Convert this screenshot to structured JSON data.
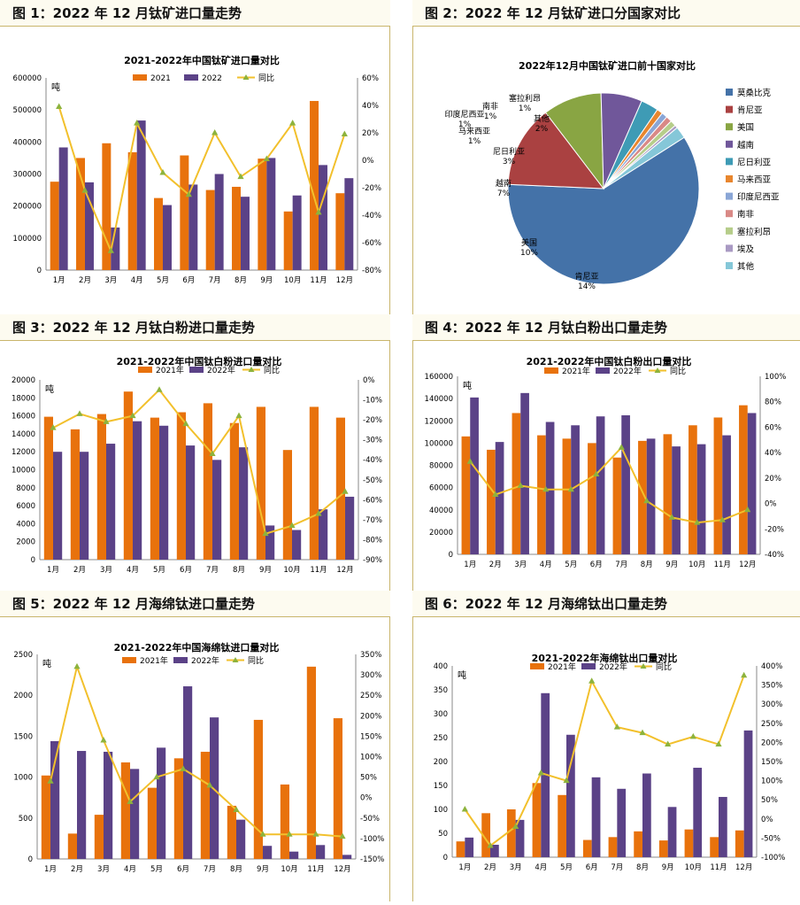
{
  "months": [
    "1月",
    "2月",
    "3月",
    "4月",
    "5月",
    "6月",
    "7月",
    "8月",
    "9月",
    "10月",
    "11月",
    "12月"
  ],
  "colors": {
    "orange": "#e8720c",
    "purple": "#5b4287",
    "line": "#f2c02c",
    "marker": "#8db33d"
  },
  "panels": [
    {
      "header": "图 1：2022 年 12 月钛矿进口量走势",
      "chart_data": {
        "type": "bar",
        "title": "2021-2022年中国钛矿进口量对比",
        "unit": "吨",
        "legend": [
          "2021",
          "2022",
          "同比"
        ],
        "series": [
          {
            "name": "2021",
            "values": [
              276000,
              350000,
              396000,
              368000,
              225000,
              358000,
              250000,
              260000,
              348000,
              183000,
              528000,
              240000
            ]
          },
          {
            "name": "2022",
            "values": [
              383000,
              274000,
              133000,
              467000,
              203000,
              267000,
              300000,
              229000,
              350000,
              233000,
              328000,
              287000
            ]
          },
          {
            "name": "同比",
            "values": [
              39,
              -22,
              -66,
              27,
              -9,
              -25,
              20,
              -12,
              1,
              27,
              -38,
              19
            ]
          }
        ],
        "ylim": [
          0,
          600000
        ],
        "yticks": [
          0,
          100000,
          200000,
          300000,
          400000,
          500000,
          600000
        ],
        "y2lim": [
          -80,
          60
        ],
        "y2ticks": [
          -80,
          -60,
          -40,
          -20,
          0,
          20,
          40,
          60
        ]
      }
    },
    {
      "header": "图 2：2022 年 12 月钛矿进口分国家对比",
      "chart_data": {
        "type": "pie",
        "title": "2022年12月中国钛矿进口前十国家对比",
        "slices": [
          {
            "name": "莫桑比克",
            "value": 60,
            "label": "莫桑比克\n60%",
            "color": "#4472a8"
          },
          {
            "name": "肯尼亚",
            "value": 14,
            "label": "肯尼亚\n14%",
            "color": "#aa4141"
          },
          {
            "name": "美国",
            "value": 10,
            "label": "美国\n10%",
            "color": "#89a543"
          },
          {
            "name": "越南",
            "value": 7,
            "label": "越南\n7%",
            "color": "#70579a"
          },
          {
            "name": "尼日利亚",
            "value": 3,
            "label": "尼日利亚\n3%",
            "color": "#3e9bb5"
          },
          {
            "name": "马来西亚",
            "value": 1,
            "label": "马来西亚\n1%",
            "color": "#e8862e"
          },
          {
            "name": "印度尼西亚",
            "value": 1,
            "label": "印度尼西亚\n1%",
            "color": "#8aa6d6"
          },
          {
            "name": "南非",
            "value": 1,
            "label": "南非\n1%",
            "color": "#d98986"
          },
          {
            "name": "塞拉利昂",
            "value": 1,
            "label": "塞拉利昂\n1%",
            "color": "#b6cd8a"
          },
          {
            "name": "埃及",
            "value": 0.5,
            "label": "",
            "color": "#a99ac3"
          },
          {
            "name": "其他",
            "value": 2,
            "label": "其他\n2%",
            "color": "#85c7d8"
          }
        ],
        "legend_placement": "right"
      }
    },
    {
      "header": "图 3：2022 年 12 月钛白粉进口量走势",
      "chart_data": {
        "type": "bar",
        "title": "2021-2022年中国钛白粉进口量对比",
        "unit": "吨",
        "legend": [
          "2021年",
          "2022年",
          "同比"
        ],
        "series": [
          {
            "name": "2021年",
            "values": [
              15900,
              14500,
              16200,
              18700,
              15800,
              16400,
              17400,
              15200,
              17000,
              12200,
              17000,
              15800
            ]
          },
          {
            "name": "2022年",
            "values": [
              12000,
              12000,
              12900,
              15400,
              14900,
              12700,
              11100,
              12500,
              3800,
              3300,
              5600,
              7000
            ]
          },
          {
            "name": "同比",
            "values": [
              -24,
              -17,
              -21,
              -18,
              -5,
              -22,
              -37,
              -18,
              -77,
              -73,
              -67,
              -56
            ]
          }
        ],
        "ylim": [
          0,
          20000
        ],
        "yticks": [
          0,
          2000,
          4000,
          6000,
          8000,
          10000,
          12000,
          14000,
          16000,
          18000,
          20000
        ],
        "y2lim": [
          -90,
          0
        ],
        "y2ticks": [
          -90,
          -80,
          -70,
          -60,
          -50,
          -40,
          -30,
          -20,
          -10,
          0
        ]
      }
    },
    {
      "header": "图 4：2022 年 12 月钛白粉出口量走势",
      "chart_data": {
        "type": "bar",
        "title": "2021-2022年中国钛白粉出口量对比",
        "unit": "吨",
        "legend": [
          "2021年",
          "2022年",
          "同比"
        ],
        "series": [
          {
            "name": "2021年",
            "values": [
              106000,
              94000,
              127000,
              107000,
              104000,
              100000,
              87000,
              102000,
              108000,
              116000,
              123000,
              134000
            ]
          },
          {
            "name": "2022年",
            "values": [
              141000,
              101000,
              145000,
              119000,
              116000,
              124000,
              125000,
              104000,
              97000,
              99000,
              107000,
              127000
            ]
          },
          {
            "name": "同比",
            "values": [
              33,
              7,
              14,
              11,
              11,
              23,
              44,
              2,
              -11,
              -15,
              -13,
              -5
            ]
          }
        ],
        "ylim": [
          0,
          160000
        ],
        "yticks": [
          0,
          20000,
          40000,
          60000,
          80000,
          100000,
          120000,
          140000,
          160000
        ],
        "y2lim": [
          -40,
          100
        ],
        "y2ticks": [
          -40,
          -20,
          0,
          20,
          40,
          60,
          80,
          100
        ]
      }
    },
    {
      "header": "图 5：2022 年 12 月海绵钛进口量走势",
      "chart_data": {
        "type": "bar",
        "title": "2021-2022年中国海绵钛进口量对比",
        "unit": "吨",
        "legend": [
          "2021年",
          "2022年",
          "同比"
        ],
        "series": [
          {
            "name": "2021年",
            "values": [
              1020,
              310,
              540,
              1180,
              870,
              1230,
              1310,
              650,
              1700,
              910,
              2350,
              1720
            ]
          },
          {
            "name": "2022年",
            "values": [
              1440,
              1320,
              1310,
              1100,
              1360,
              2110,
              1730,
              480,
              160,
              90,
              170,
              50
            ]
          },
          {
            "name": "同比",
            "values": [
              40,
              320,
              140,
              -10,
              50,
              70,
              30,
              -30,
              -90,
              -90,
              -90,
              -95
            ]
          }
        ],
        "ylim": [
          0,
          2500
        ],
        "yticks": [
          0,
          500,
          1000,
          1500,
          2000,
          2500
        ],
        "y2lim": [
          -150,
          350
        ],
        "y2ticks": [
          -150,
          -100,
          -50,
          0,
          50,
          100,
          150,
          200,
          250,
          300,
          350
        ]
      }
    },
    {
      "header": "图 6：2022 年 12 月海绵钛出口量走势",
      "chart_data": {
        "type": "bar",
        "title": "2021-2022年海绵钛出口量对比",
        "unit": "吨",
        "legend": [
          "2021年",
          "2022年",
          "同比"
        ],
        "series": [
          {
            "name": "2021年",
            "values": [
              33,
              92,
              100,
              155,
              130,
              36,
              42,
              54,
              35,
              58,
              42,
              56
            ]
          },
          {
            "name": "2022年",
            "values": [
              41,
              26,
              78,
              343,
              256,
              167,
              143,
              175,
              105,
              187,
              126,
              265
            ]
          },
          {
            "name": "同比",
            "values": [
              25,
              -70,
              -20,
              120,
              100,
              360,
              240,
              225,
              195,
              215,
              195,
              375
            ]
          }
        ],
        "ylim": [
          0,
          400
        ],
        "yticks": [
          0,
          50,
          100,
          150,
          200,
          250,
          300,
          350,
          400
        ],
        "y2lim": [
          -100,
          400
        ],
        "y2ticks": [
          -100,
          -50,
          0,
          50,
          100,
          150,
          200,
          250,
          300,
          350,
          400
        ]
      }
    }
  ]
}
